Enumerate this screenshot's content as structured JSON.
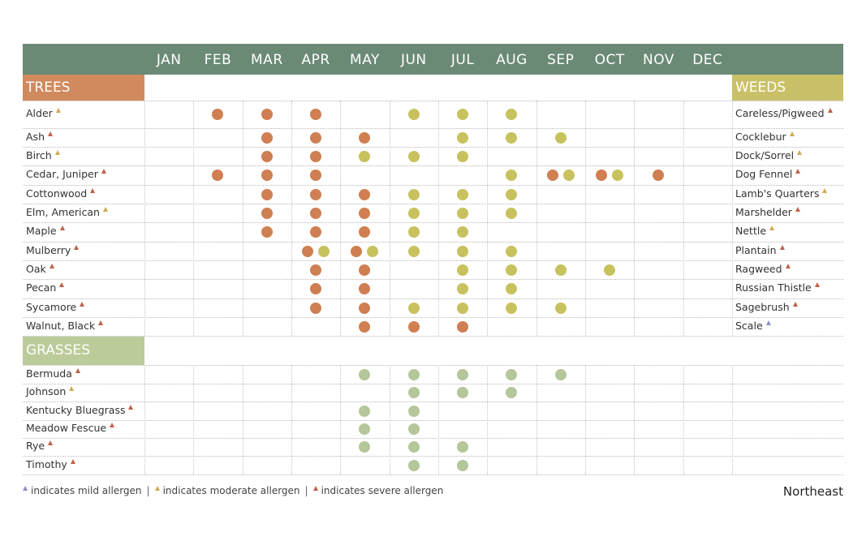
{
  "months": [
    "JAN",
    "FEB",
    "MAR",
    "APR",
    "MAY",
    "JUN",
    "JUL",
    "AUG",
    "SEP",
    "OCT",
    "NOV",
    "DEC"
  ],
  "sections": {
    "trees": "TREES",
    "weeds": "WEEDS",
    "grasses": "GRASSES"
  },
  "colors": {
    "header": "#6b8a76",
    "trees": "#d08a5e",
    "weeds": "#c9c068",
    "grasses": "#bccb9a",
    "tree_dot": "#cf7f52",
    "weed_dot": "#c8c25e",
    "grass_dot": "#b4c69a",
    "mild": "#8d8fc0",
    "moderate": "#d0aa50",
    "severe": "#c0614a"
  },
  "legend": {
    "mild": "indicates mild allergen",
    "moderate": "indicates moderate allergen",
    "severe": "indicates severe allergen",
    "separator": "|"
  },
  "region": "Northeast",
  "chart_data": {
    "type": "table",
    "title": "",
    "severity_scale": [
      "mild",
      "moderate",
      "severe"
    ],
    "trees": [
      {
        "name": "Alder",
        "severity": "moderate",
        "tree": [
          "FEB",
          "MAR",
          "APR"
        ],
        "weed": [
          "JUN",
          "JUL",
          "AUG"
        ]
      },
      {
        "name": "Ash",
        "severity": "severe",
        "tree": [
          "MAR",
          "APR",
          "MAY"
        ],
        "weed": [
          "JUL",
          "AUG",
          "SEP"
        ]
      },
      {
        "name": "Birch",
        "severity": "moderate",
        "tree": [
          "MAR",
          "APR"
        ],
        "weed": [
          "MAY",
          "JUN",
          "JUL"
        ]
      },
      {
        "name": "Cedar, Juniper",
        "severity": "severe",
        "tree": [
          "FEB",
          "MAR",
          "APR",
          "SEP",
          "OCT",
          "NOV"
        ],
        "weed": [
          "AUG",
          "SEP",
          "OCT"
        ]
      },
      {
        "name": "Cottonwood",
        "severity": "severe",
        "tree": [
          "MAR",
          "APR",
          "MAY"
        ],
        "weed": [
          "JUN",
          "JUL",
          "AUG"
        ]
      },
      {
        "name": "Elm, American",
        "severity": "moderate",
        "tree": [
          "MAR",
          "APR",
          "MAY"
        ],
        "weed": [
          "JUN",
          "JUL",
          "AUG"
        ]
      },
      {
        "name": "Maple",
        "severity": "severe",
        "tree": [
          "MAR",
          "APR",
          "MAY"
        ],
        "weed": [
          "JUN",
          "JUL"
        ]
      },
      {
        "name": "Mulberry",
        "severity": "severe",
        "tree": [
          "APR",
          "MAY"
        ],
        "weed": [
          "APR",
          "MAY",
          "JUN",
          "JUL",
          "AUG"
        ]
      },
      {
        "name": "Oak",
        "severity": "severe",
        "tree": [
          "APR",
          "MAY"
        ],
        "weed": [
          "JUL",
          "AUG",
          "SEP",
          "OCT"
        ]
      },
      {
        "name": "Pecan",
        "severity": "severe",
        "tree": [
          "APR",
          "MAY"
        ],
        "weed": [
          "JUL",
          "AUG"
        ]
      },
      {
        "name": "Sycamore",
        "severity": "severe",
        "tree": [
          "APR",
          "MAY"
        ],
        "weed": [
          "JUN",
          "JUL",
          "AUG",
          "SEP"
        ]
      },
      {
        "name": "Walnut, Black",
        "severity": "severe",
        "tree": [
          "MAY",
          "JUN",
          "JUL"
        ],
        "weed": []
      }
    ],
    "weeds": [
      {
        "name": "Careless/Pigweed",
        "severity": "severe"
      },
      {
        "name": "Cocklebur",
        "severity": "moderate"
      },
      {
        "name": "Dock/Sorrel",
        "severity": "moderate"
      },
      {
        "name": "Dog Fennel",
        "severity": "severe"
      },
      {
        "name": "Lamb's Quarters",
        "severity": "moderate"
      },
      {
        "name": "Marshelder",
        "severity": "severe"
      },
      {
        "name": "Nettle",
        "severity": "moderate"
      },
      {
        "name": "Plantain",
        "severity": "severe"
      },
      {
        "name": "Ragweed",
        "severity": "severe"
      },
      {
        "name": "Russian Thistle",
        "severity": "severe"
      },
      {
        "name": "Sagebrush",
        "severity": "severe"
      },
      {
        "name": "Scale",
        "severity": "mild"
      }
    ],
    "grasses": [
      {
        "name": "Bermuda",
        "severity": "severe",
        "months": [
          "MAY",
          "JUN",
          "JUL",
          "AUG",
          "SEP"
        ]
      },
      {
        "name": "Johnson",
        "severity": "moderate",
        "months": [
          "JUN",
          "JUL",
          "AUG"
        ]
      },
      {
        "name": "Kentucky Bluegrass",
        "severity": "severe",
        "months": [
          "MAY",
          "JUN"
        ]
      },
      {
        "name": "Meadow Fescue",
        "severity": "severe",
        "months": [
          "MAY",
          "JUN"
        ]
      },
      {
        "name": "Rye",
        "severity": "severe",
        "months": [
          "MAY",
          "JUN",
          "JUL"
        ]
      },
      {
        "name": "Timothy",
        "severity": "severe",
        "months": [
          "JUN",
          "JUL"
        ]
      }
    ]
  }
}
